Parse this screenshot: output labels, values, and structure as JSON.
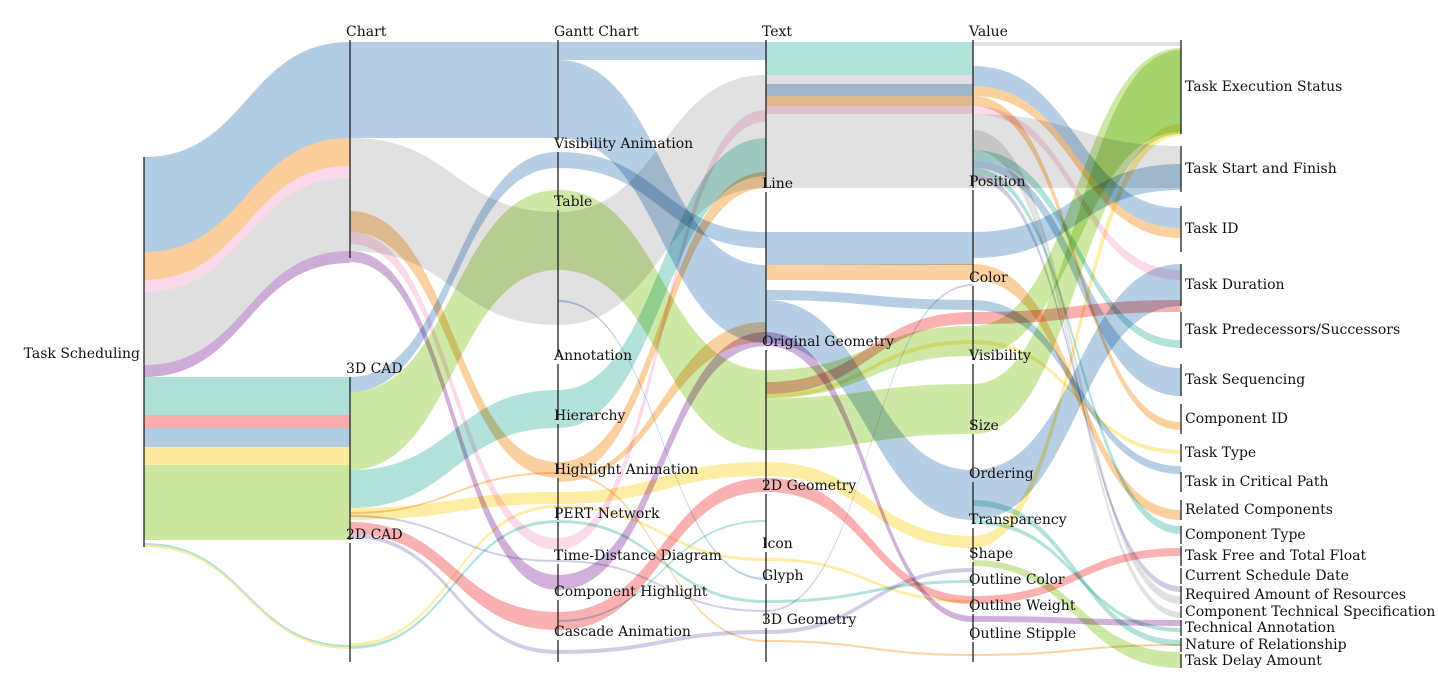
{
  "diagram": {
    "type": "parallel-sets",
    "root": "Task Scheduling",
    "columns": [
      [
        "Chart",
        "3D CAD",
        "2D CAD"
      ],
      [
        "Gantt Chart",
        "Visibility Animation",
        "Table",
        "Annotation",
        "Hierarchy",
        "Highlight Animation",
        "PERT Network",
        "Time-Distance Diagram",
        "Component Highlight",
        "Cascade Animation"
      ],
      [
        "Text",
        "Line",
        "Original Geometry",
        "2D Geometry",
        "Icon",
        "Glyph",
        "3D Geometry"
      ],
      [
        "Value",
        "Position",
        "Color",
        "Visibility",
        "Size",
        "Ordering",
        "Transparency",
        "Shape",
        "Outline Color",
        "Outline Weight",
        "Outline Stipple"
      ],
      [
        "Task Execution Status",
        "Task Start and Finish",
        "Task ID",
        "Task Duration",
        "Task Predecessors/Successors",
        "Task Sequencing",
        "Component ID",
        "Task Type",
        "Task in Critical Path",
        "Related Components",
        "Component Type",
        "Task Free and Total Float",
        "Current Schedule Date",
        "Required Amount of Resources",
        "Component Technical Specification",
        "Technical Annotation",
        "Nature of Relationship",
        "Task Delay Amount"
      ]
    ],
    "colors": {
      "blue": "#a9c7e0",
      "orange": "#fcc991",
      "pink": "#fcd5e8",
      "grey": "#dcdcdc",
      "purple": "#c9a3d4",
      "teal": "#a6ddd3",
      "red": "#f9a3a3",
      "yellow": "#feea94",
      "green": "#c6e496",
      "lavender": "#c8c4e2"
    }
  }
}
